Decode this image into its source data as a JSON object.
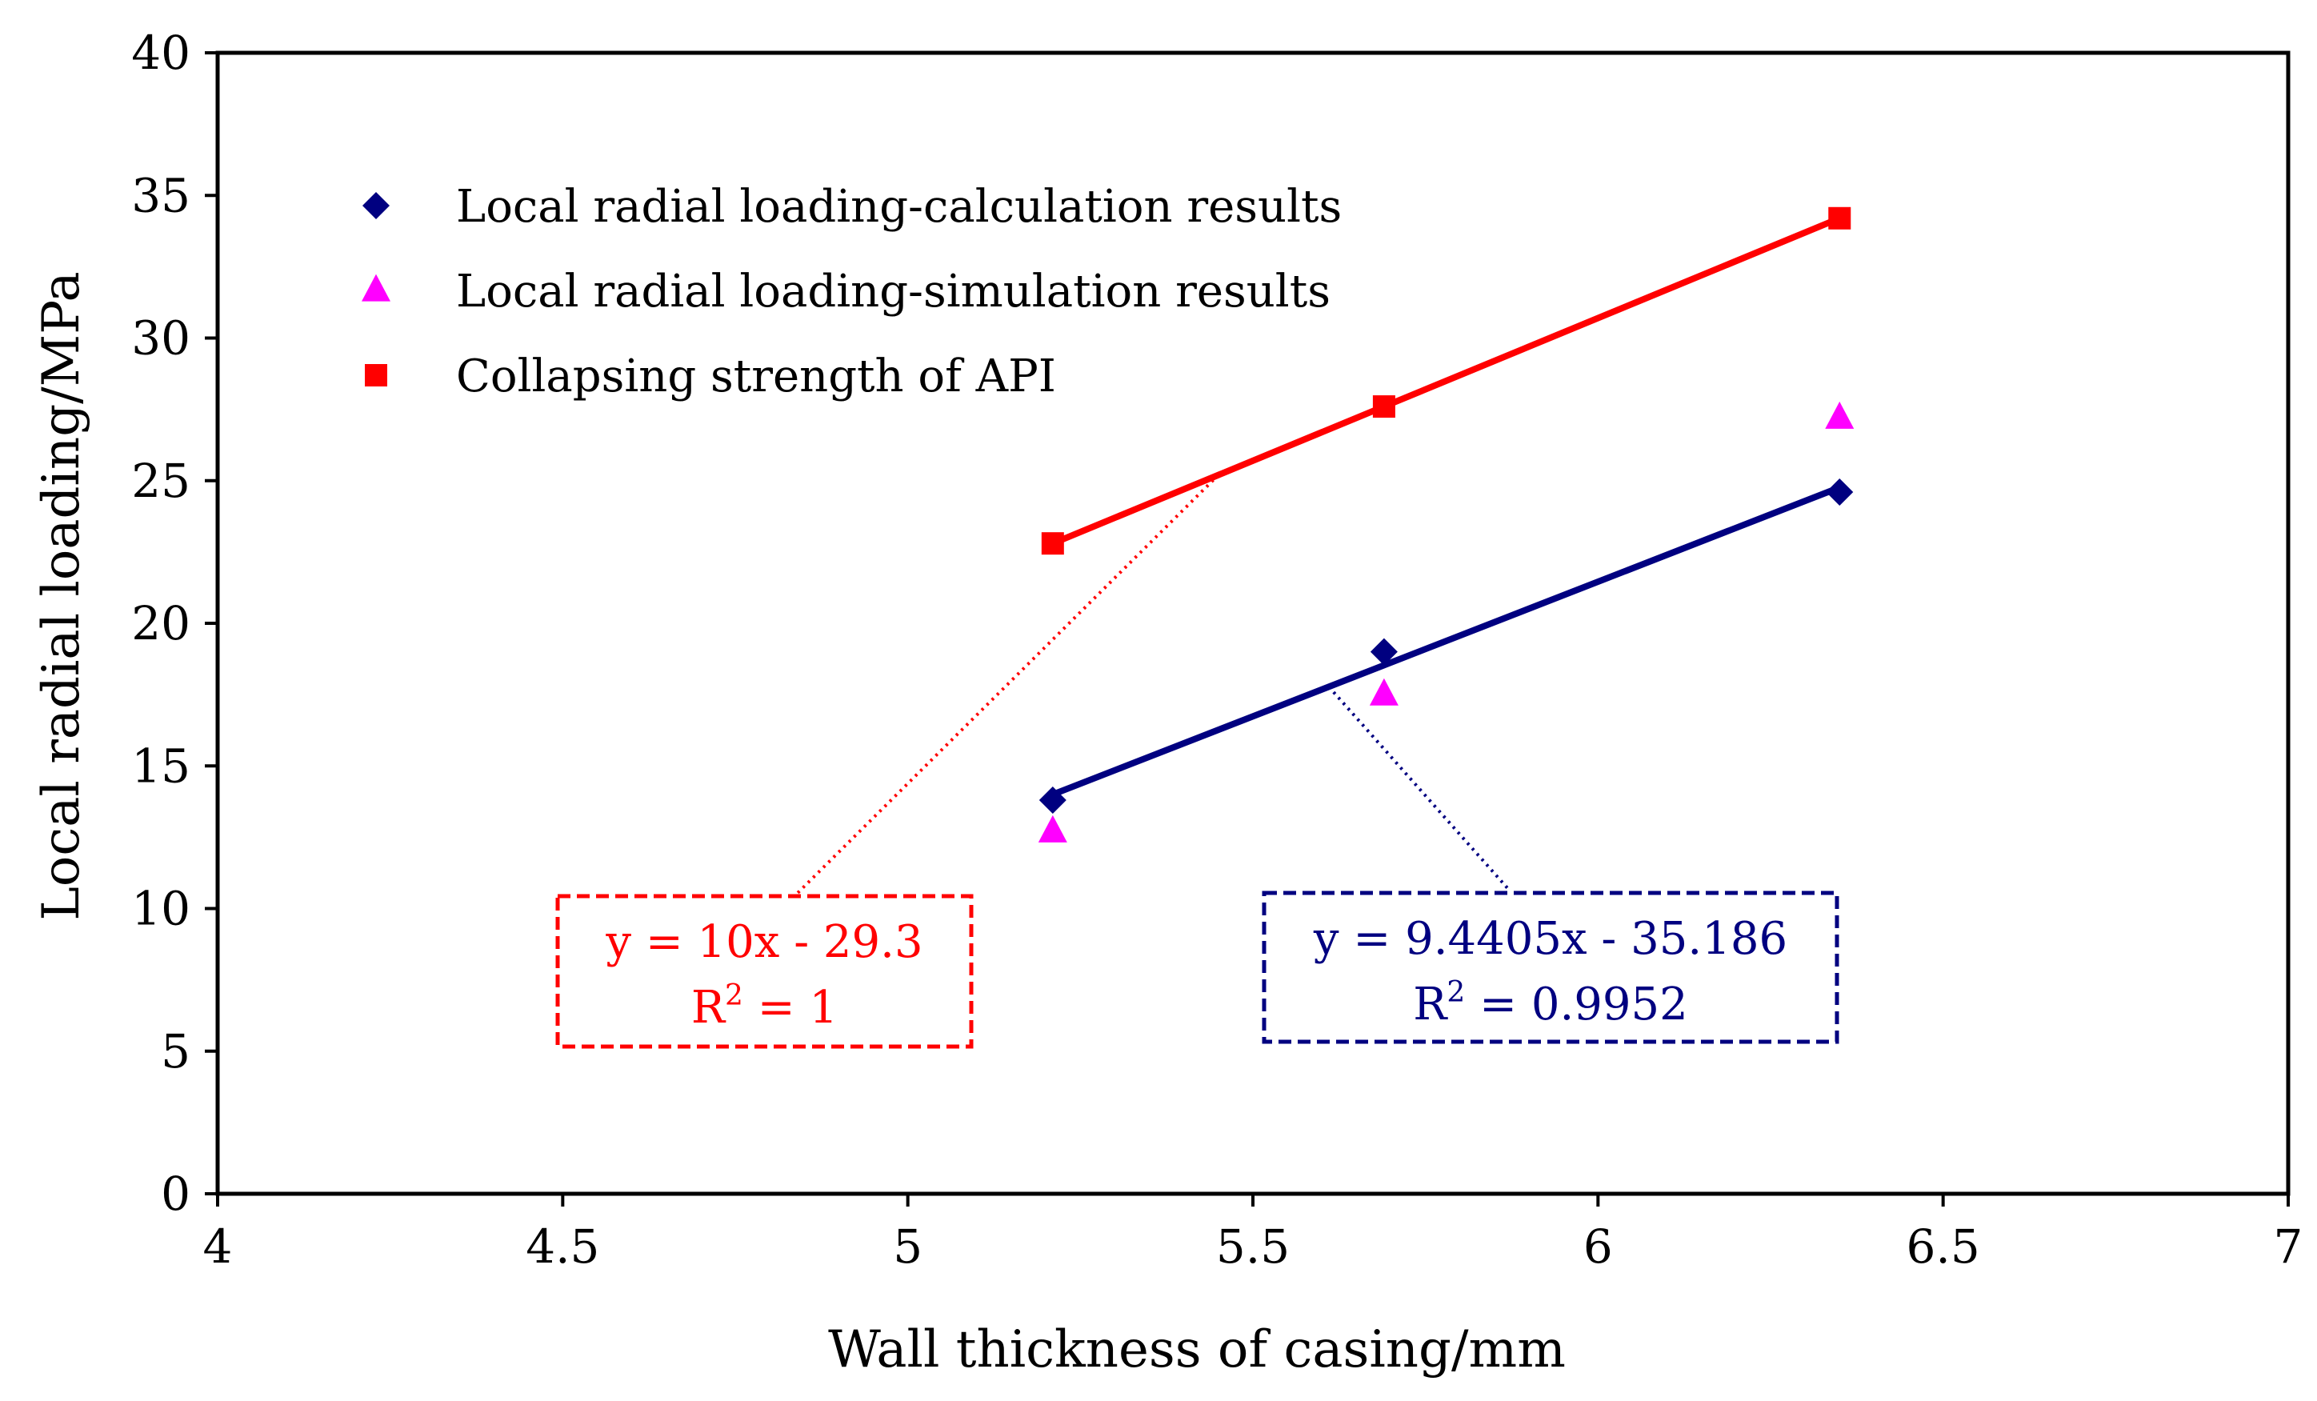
{
  "chart_data": {
    "type": "scatter",
    "title": "",
    "xlabel": "Wall thickness of casing/mm",
    "ylabel": "Local radial loading/MPa",
    "xlim": [
      4,
      7
    ],
    "ylim": [
      0,
      40
    ],
    "xticks": [
      4,
      4.5,
      5,
      5.5,
      6,
      6.5,
      7
    ],
    "xtick_labels": [
      "4",
      "4.5",
      "5",
      "5.5",
      "6",
      "6.5",
      "7"
    ],
    "yticks": [
      0,
      5,
      10,
      15,
      20,
      25,
      30,
      35,
      40
    ],
    "ytick_labels": [
      "0",
      "5",
      "10",
      "15",
      "20",
      "25",
      "30",
      "35",
      "40"
    ],
    "grid": false,
    "legend_position": "top-left",
    "series": [
      {
        "name": "Local radial loading-calculation results",
        "marker": "diamond",
        "color": "#000080",
        "x": [
          5.21,
          5.69,
          6.35
        ],
        "y": [
          13.8,
          19.0,
          24.6
        ],
        "trendline": {
          "x": [
            5.21,
            6.35
          ],
          "slope": 9.4405,
          "intercept": -35.186
        }
      },
      {
        "name": "Local radial loading-simulation results",
        "marker": "triangle",
        "color": "#ff00ff",
        "x": [
          5.21,
          5.69,
          6.35
        ],
        "y": [
          12.7,
          17.5,
          27.2
        ]
      },
      {
        "name": "Collapsing strength of API",
        "marker": "square",
        "color": "#ff0000",
        "x": [
          5.21,
          5.69,
          6.35
        ],
        "y": [
          22.8,
          27.6,
          34.2
        ],
        "trendline": {
          "x": [
            5.21,
            6.35
          ],
          "slope": 10,
          "intercept": -29.3
        }
      }
    ],
    "annotations": [
      {
        "series": "Collapsing strength of API",
        "equation": "y = 10x - 29.3",
        "r2_label": "R",
        "r2_sup": "2",
        "r2_value": " = 1",
        "color": "#ff0000"
      },
      {
        "series": "Local radial loading-calculation results",
        "equation": "y = 9.4405x - 35.186",
        "r2_label": "R",
        "r2_sup": "2",
        "r2_value": " = 0.9952",
        "color": "#000080"
      }
    ]
  }
}
